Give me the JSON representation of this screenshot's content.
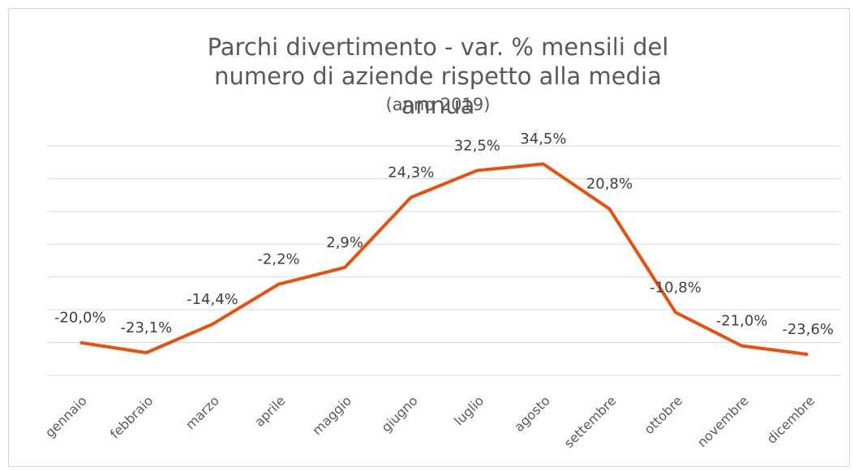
{
  "chart_data": {
    "type": "line",
    "title": "Parchi divertimento - var. % mensili del numero di aziende rispetto alla media annua",
    "subtitle": "(anno 2019)",
    "categories": [
      "gennaio",
      "febbraio",
      "marzo",
      "aprile",
      "maggio",
      "giugno",
      "luglio",
      "agosto",
      "settembre",
      "ottobre",
      "novembre",
      "dicembre"
    ],
    "series": [
      {
        "name": "var. %",
        "color": "#e8500f",
        "values": [
          -20.0,
          -23.1,
          -14.4,
          -2.2,
          2.9,
          24.3,
          32.5,
          34.5,
          20.8,
          -10.8,
          -21.0,
          -23.6
        ],
        "value_labels": [
          "-20,0%",
          "-23,1%",
          "-14,4%",
          "-2,2%",
          "2,9%",
          "24,3%",
          "32,5%",
          "34,5%",
          "20,8%",
          "-10,8%",
          "-21,0%",
          "-23,6%"
        ]
      }
    ],
    "ylim": [
      -30,
      40
    ],
    "yticks": [
      -30,
      -20,
      -10,
      0,
      10,
      20,
      30,
      40
    ],
    "grid": true
  }
}
